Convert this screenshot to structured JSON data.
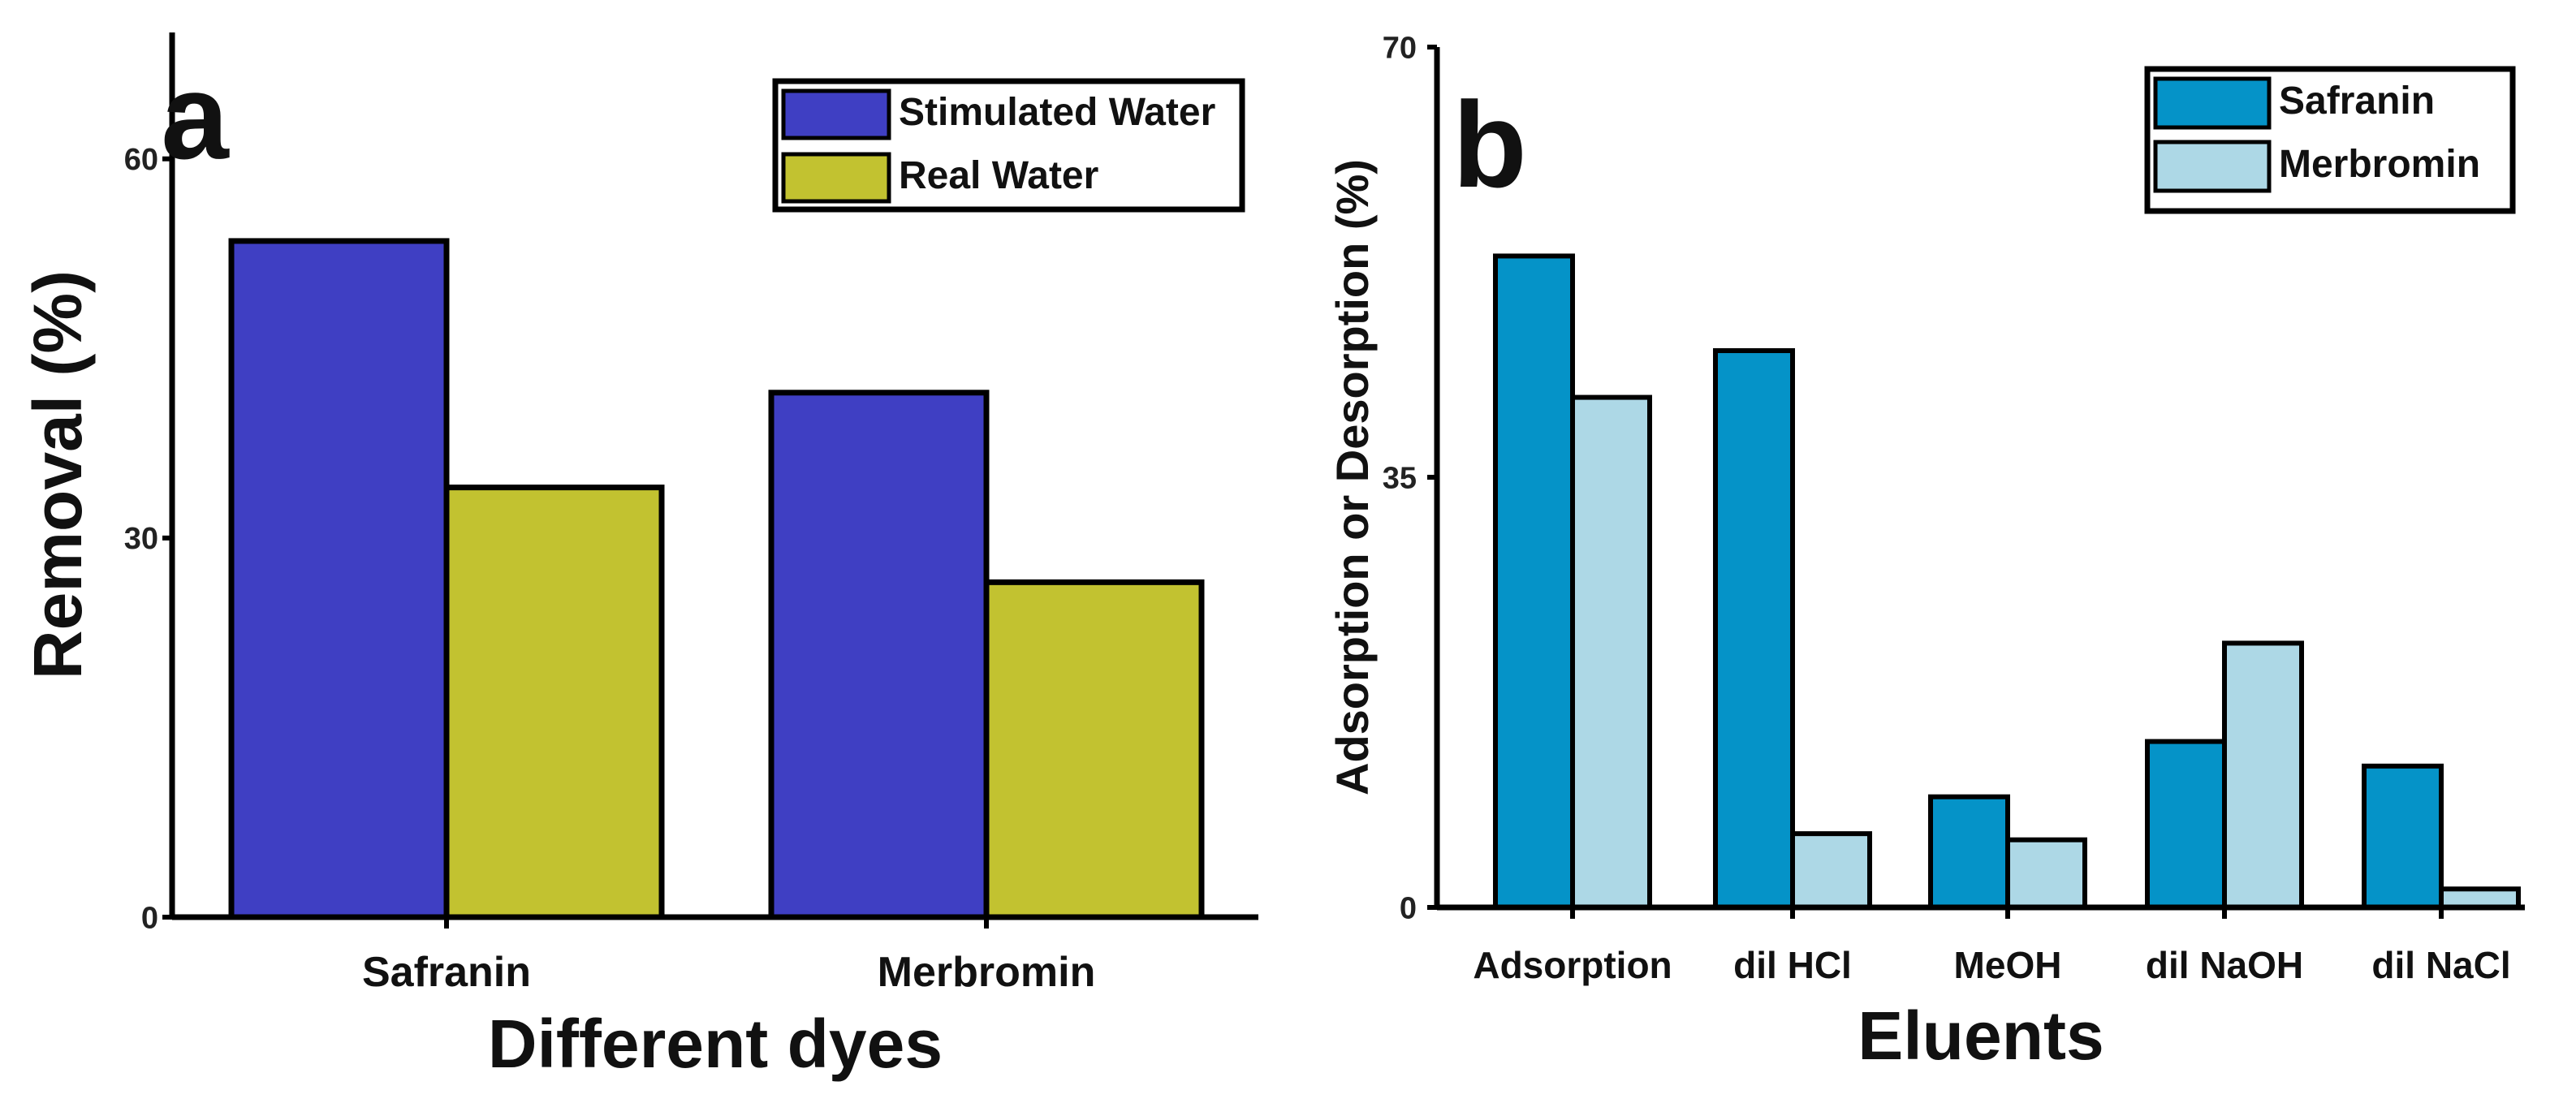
{
  "chart_data": [
    {
      "type": "bar",
      "panel_label": "a",
      "categories": [
        "Safranin",
        "Merbromin"
      ],
      "series": [
        {
          "name": "Stimulated Water",
          "color": "#3f3fc3",
          "values": [
            53.5,
            41.5
          ]
        },
        {
          "name": "Real Water",
          "color": "#c2c230",
          "values": [
            34,
            26.5
          ]
        }
      ],
      "xlabel": "Different dyes",
      "ylabel": "Removal (%)",
      "ylim": [
        0,
        70
      ],
      "yticks": [
        0,
        30,
        60
      ],
      "legend": "top-right"
    },
    {
      "type": "bar",
      "panel_label": "b",
      "categories": [
        "Adsorption",
        "dil HCl",
        "MeOH",
        "dil NaOH",
        "dil NaCl"
      ],
      "series": [
        {
          "name": "Safranin",
          "color": "#0593c8",
          "values": [
            53,
            45.3,
            9,
            13.5,
            11.5
          ]
        },
        {
          "name": "Merbromin",
          "color": "#add8e6",
          "values": [
            41.5,
            6,
            5.5,
            21.5,
            1.5
          ]
        }
      ],
      "xlabel": "Eluents",
      "ylabel": "Adsorption or Desorption (%)",
      "ylim": [
        0,
        70
      ],
      "yticks": [
        0,
        35,
        70
      ],
      "legend": "top-right"
    }
  ]
}
